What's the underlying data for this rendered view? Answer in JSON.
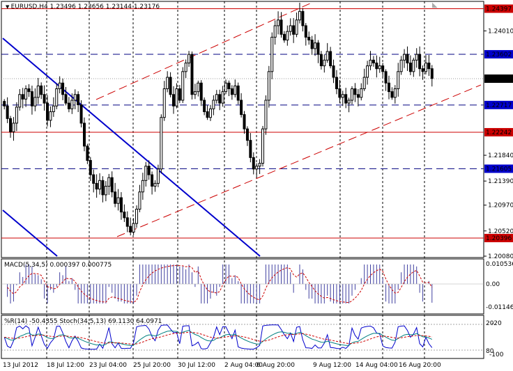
{
  "header": {
    "symbol": "EURUSD,H4",
    "ohlc": "1.23496 1.23656 1.23144 1.23176"
  },
  "macd_header": "MACD(5,34,5) 0.000397 0.000775",
  "osc_header": "%R(14) -50.4355 Stoch(34,5,13) 69.1130 64.0971",
  "colors": {
    "candle": "#000000",
    "red_line": "#cc0000",
    "blue_line": "#0000cc",
    "macd_bar": "#4040a0",
    "macd_signal": "#cc0000",
    "stoch_main": "#008080",
    "stoch_signal": "#cc0000",
    "wpr": "#0000cc",
    "current_price_label_bg": "#000000",
    "level_label_bg": "#0000cc",
    "red_label_bg": "#cc0000"
  },
  "chart_data": {
    "type": "candlestick",
    "title": "EURUSD,H4",
    "ylim": [
      1.2008,
      1.245
    ],
    "y_ticks": [
      1.2401,
      1.236,
      1.2317,
      1.2271,
      1.2224,
      1.2184,
      1.2139,
      1.2097,
      1.2052,
      1.2008
    ],
    "y_tick_labels": [
      "1.24010",
      "1.23602",
      "1.23176",
      "1.22717",
      "1.22242",
      "1.21840",
      "1.21390",
      "1.20970",
      "1.20520",
      "1.20080"
    ],
    "x_labels": [
      "13 Jul 2012",
      "18 Jul 12:00",
      "23 Jul 04:00",
      "25 Jul 20:00",
      "30 Jul 12:00",
      "2 Aug 04:00",
      "6 Aug 20:00",
      "9 Aug 12:00",
      "14 Aug 04:00",
      "16 Aug 20:00"
    ],
    "current_price": 1.23176,
    "current_price_label": "1.23176",
    "horizontal_red_levels": [
      {
        "value": 1.24397,
        "label": "1.24397"
      },
      {
        "value": 1.22242,
        "label": "1.22242"
      },
      {
        "value": 1.20396,
        "label": "1.20396"
      }
    ],
    "horizontal_blue_dashed_levels": [
      {
        "value": 1.23602,
        "label": "1.23602"
      },
      {
        "value": 1.22717,
        "label": "1.22717"
      },
      {
        "value": 1.21605,
        "label": "1.21605"
      }
    ],
    "close_path": [
      1.227,
      1.2248,
      1.2225,
      1.224,
      1.2268,
      1.229,
      1.2282,
      1.23,
      1.2295,
      1.227,
      1.2285,
      1.2305,
      1.229,
      1.2275,
      1.2245,
      1.226,
      1.227,
      1.23,
      1.231,
      1.229,
      1.2275,
      1.2265,
      1.228,
      1.229,
      1.2272,
      1.224,
      1.22,
      1.2175,
      1.215,
      1.2135,
      1.2125,
      1.214,
      1.2115,
      1.213,
      1.2145,
      1.212,
      1.21,
      1.211,
      1.2085,
      1.2075,
      1.206,
      1.205,
      1.2065,
      1.209,
      1.212,
      1.214,
      1.2165,
      1.215,
      1.213,
      1.2135,
      1.216,
      1.225,
      1.23,
      1.232,
      1.229,
      1.227,
      1.23,
      1.228,
      1.233,
      1.2345,
      1.236,
      1.229,
      1.2295,
      1.231,
      1.228,
      1.226,
      1.225,
      1.2265,
      1.228,
      1.229,
      1.2275,
      1.2295,
      1.231,
      1.23,
      1.229,
      1.2305,
      1.228,
      1.2255,
      1.223,
      1.221,
      1.218,
      1.216,
      1.2165,
      1.217,
      1.223,
      1.228,
      1.233,
      1.239,
      1.241,
      1.242,
      1.2395,
      1.2385,
      1.24,
      1.241,
      1.2395,
      1.242,
      1.2435,
      1.241,
      1.239,
      1.2385,
      1.237,
      1.238,
      1.236,
      1.234,
      1.235,
      1.2365,
      1.234,
      1.232,
      1.23,
      1.2285,
      1.229,
      1.2275,
      1.228,
      1.23,
      1.229,
      1.2285,
      1.23,
      1.232,
      1.234,
      1.235,
      1.2345,
      1.2335,
      1.234,
      1.233,
      1.231,
      1.2295,
      1.2285,
      1.23,
      1.233,
      1.235,
      1.236,
      1.2345,
      1.233,
      1.235,
      1.236,
      1.2335,
      1.233,
      1.2345,
      1.2335,
      1.2318
    ]
  }
}
